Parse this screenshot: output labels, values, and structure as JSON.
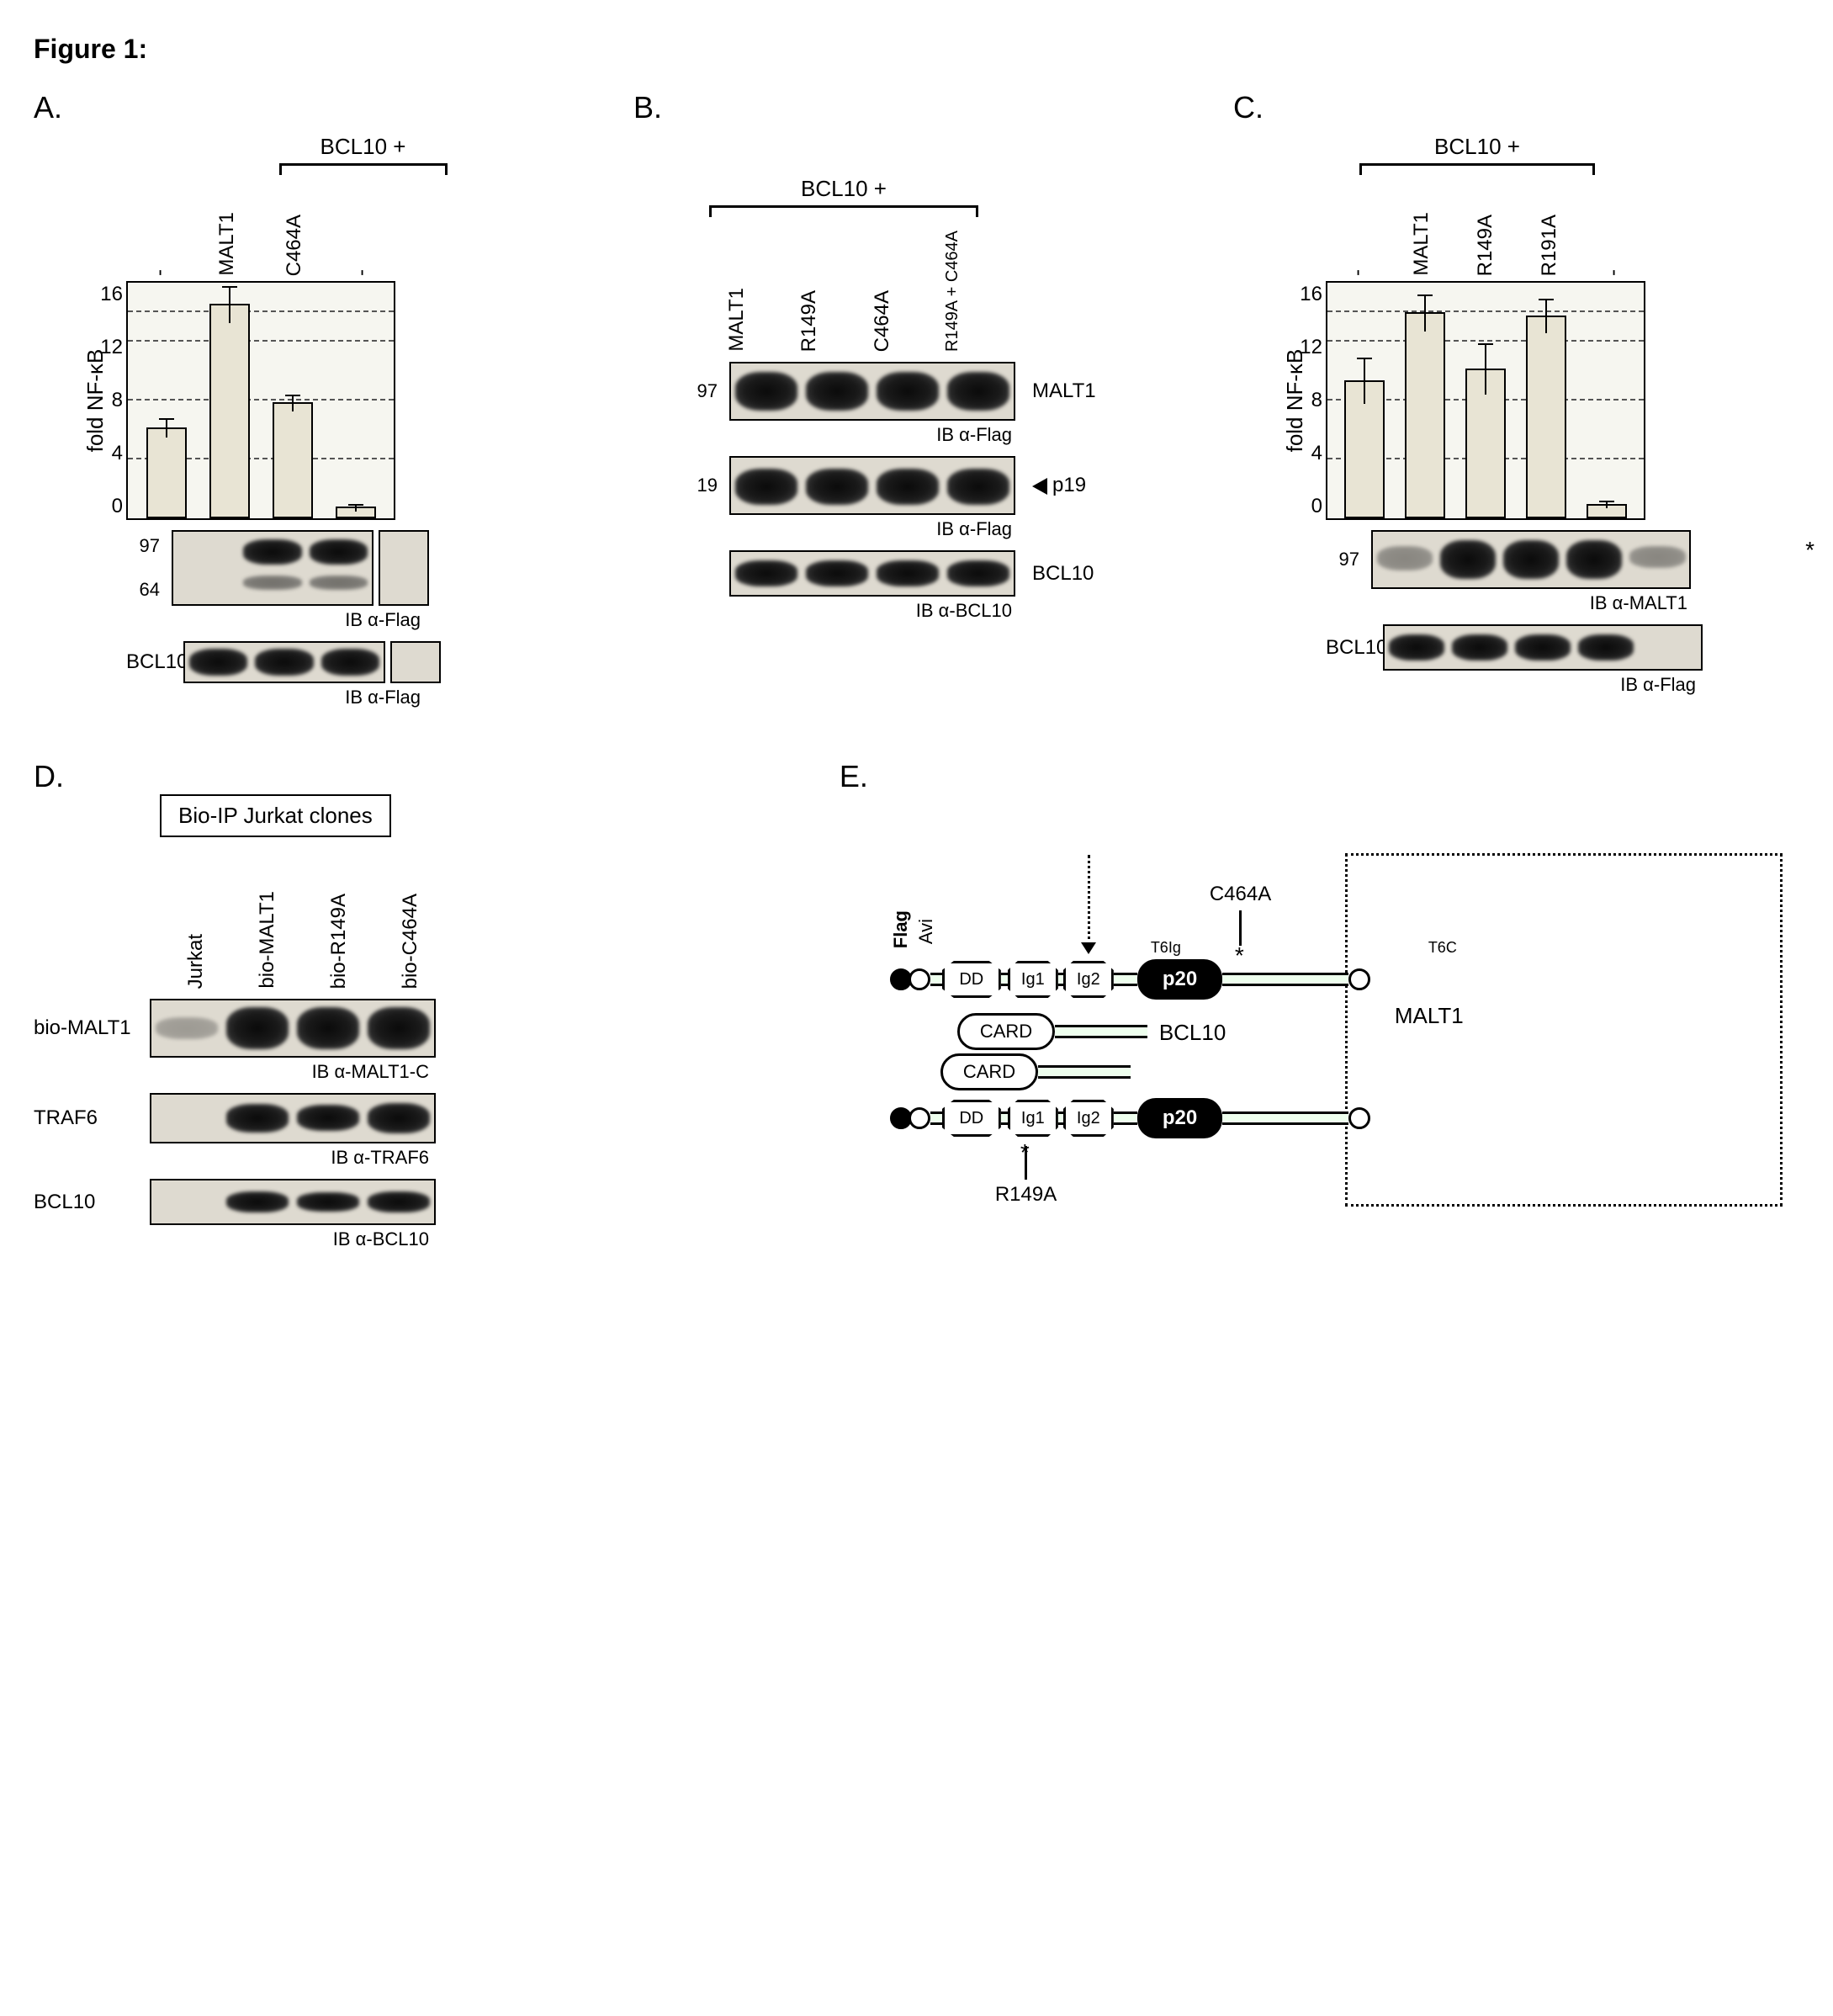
{
  "figure_title": "Figure 1:",
  "panelA": {
    "letter": "A.",
    "header": "BCL10 +",
    "conditions": [
      "-",
      "MALT1",
      "C464A",
      "-"
    ],
    "ylabel": "fold NF-κB",
    "ymax": 16,
    "ytick_step": 4,
    "values": [
      6.2,
      14.6,
      7.9,
      0.8
    ],
    "errors": [
      0.6,
      1.2,
      0.5,
      0.2
    ],
    "bar_color": "#e8e4d4",
    "grid_color": "#555555",
    "mw_markers": [
      "97",
      "64"
    ],
    "blot1_caption": "IB α-Flag",
    "blot2_label": "BCL10",
    "blot2_caption": "IB α-Flag"
  },
  "panelB": {
    "letter": "B.",
    "header": "BCL10 +",
    "conditions": [
      "MALT1",
      "R149A",
      "C464A",
      "R149A + C464A"
    ],
    "mw1": "97",
    "row1_label": "MALT1",
    "row1_caption": "IB α-Flag",
    "mw2": "19",
    "row2_label": "p19",
    "row2_caption": "IB α-Flag",
    "row3_label": "BCL10",
    "row3_caption": "IB α-BCL10"
  },
  "panelC": {
    "letter": "C.",
    "header": "BCL10 +",
    "conditions": [
      "-",
      "MALT1",
      "R149A",
      "R191A",
      "-"
    ],
    "ylabel": "fold NF-κB",
    "ymax": 16,
    "ytick_step": 4,
    "values": [
      9.4,
      14.0,
      10.2,
      13.8,
      1.0
    ],
    "errors": [
      1.5,
      1.2,
      1.7,
      1.1,
      0.2
    ],
    "mw1": "97",
    "row1_caption": "IB α-MALT1",
    "row2_label": "BCL10",
    "row2_caption": "IB α-Flag",
    "asterisk": "*"
  },
  "panelD": {
    "letter": "D.",
    "box_title": "Bio-IP Jurkat clones",
    "lanes": [
      "Jurkat",
      "bio-MALT1",
      "bio-R149A",
      "bio-C464A"
    ],
    "row1_label": "bio-MALT1",
    "row1_caption": "IB α-MALT1-C",
    "row2_label": "TRAF6",
    "row2_caption": "IB α-TRAF6",
    "row3_label": "BCL10",
    "row3_caption": "IB α-BCL10"
  },
  "panelE": {
    "letter": "E.",
    "tags": [
      "Flag",
      "Avi"
    ],
    "domains_top": [
      "DD",
      "Ig1",
      "Ig2"
    ],
    "p20": "p20",
    "traf_sites": [
      "T6Ig",
      "T6C"
    ],
    "card": "CARD",
    "bcl10": "BCL10",
    "malt1": "MALT1",
    "mut_top": "C464A",
    "mut_bottom": "R149A"
  }
}
